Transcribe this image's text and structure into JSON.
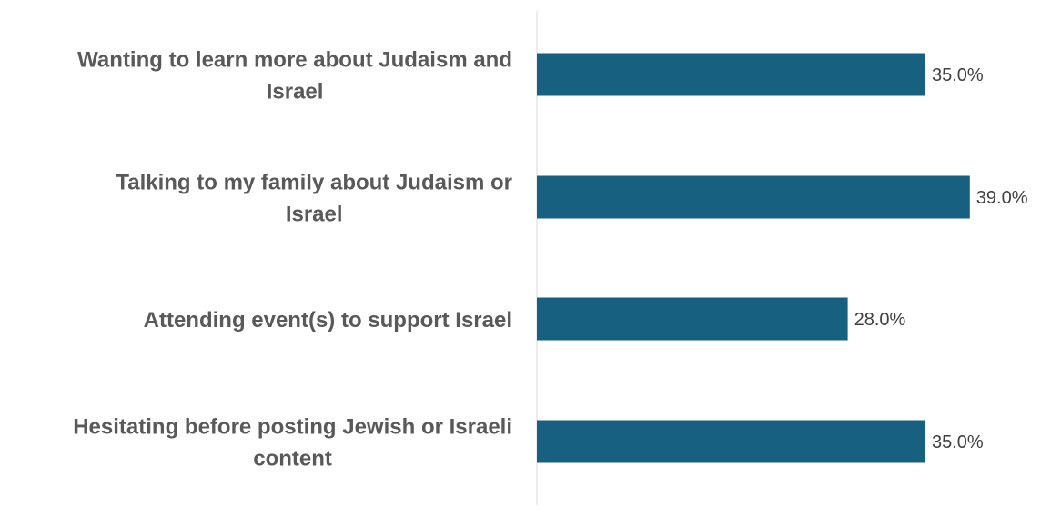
{
  "chart_data": {
    "type": "bar",
    "orientation": "horizontal",
    "categories": [
      [
        "Wanting to learn more about Judaism and",
        "Israel"
      ],
      [
        "Talking to my family about Judaism or",
        "Israel"
      ],
      [
        "Attending event(s) to support Israel"
      ],
      [
        "Hesitating before posting Jewish or Israeli",
        "content"
      ]
    ],
    "values": [
      35.0,
      39.0,
      28.0,
      35.0
    ],
    "value_labels": [
      "35.0%",
      "39.0%",
      "28.0%",
      "35.0%"
    ],
    "title": "",
    "xlabel": "",
    "ylabel": "",
    "xlim": [
      0,
      46.6
    ],
    "grid": false,
    "legend": "none",
    "bar_color": "#17607F",
    "axis_color": "#D9D9D9"
  }
}
